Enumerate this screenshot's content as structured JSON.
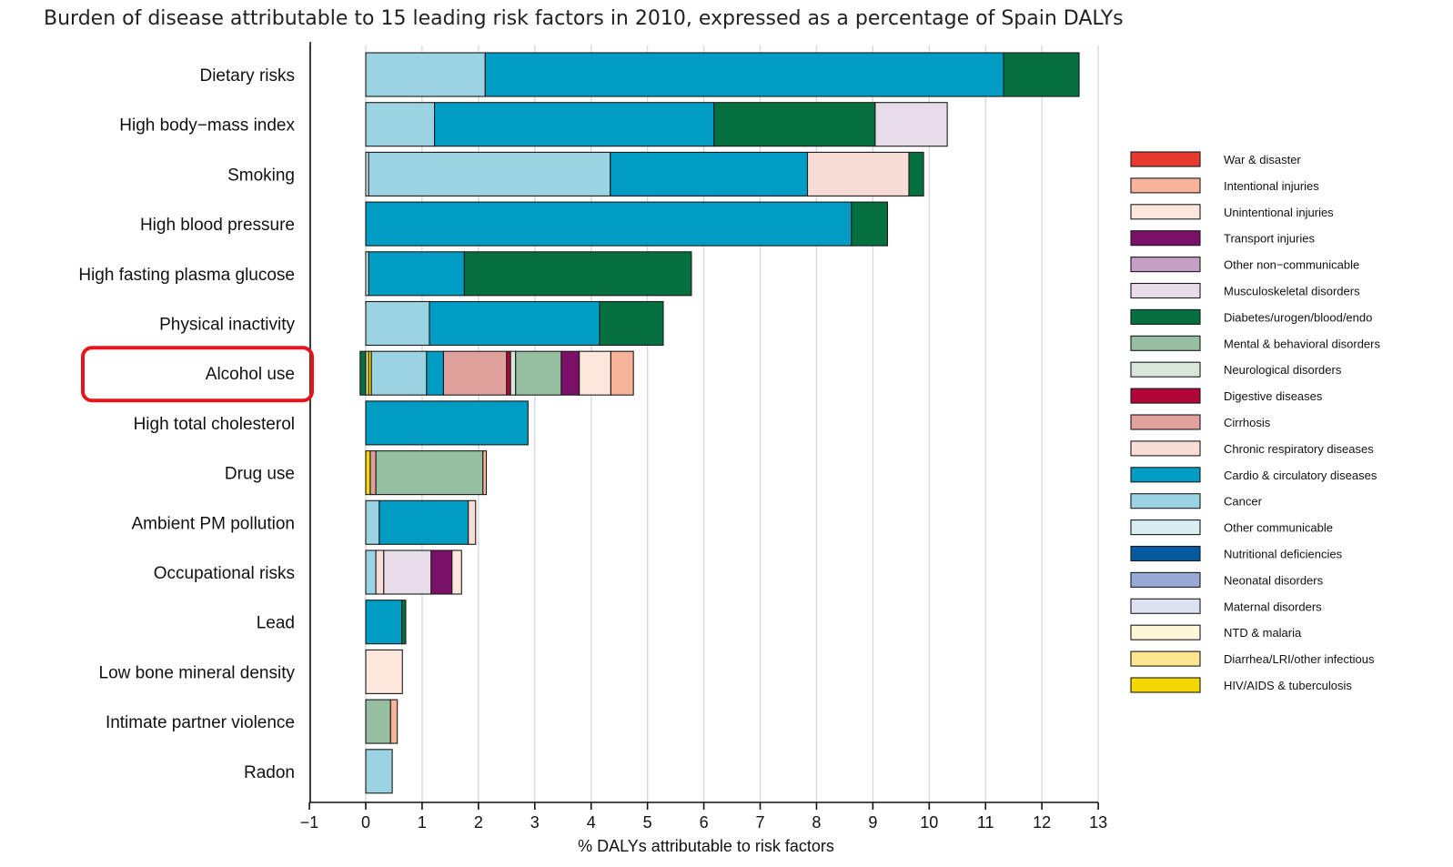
{
  "chart_data": {
    "type": "bar",
    "orientation": "horizontal",
    "stacked": true,
    "title": "Burden of disease attributable to 15 leading risk factors in 2010, expressed as a percentage of Spain DALYs",
    "xlabel": "% DALYs attributable to risk factors",
    "ylabel": "",
    "xlim": [
      -1,
      13
    ],
    "xticks": [
      "−1",
      "0",
      "1",
      "2",
      "3",
      "4",
      "5",
      "6",
      "7",
      "8",
      "9",
      "10",
      "11",
      "12",
      "13"
    ],
    "grid": true,
    "legend_position": "right",
    "highlight": "Alcohol use",
    "categories": [
      "Dietary risks",
      "High body−mass index",
      "Smoking",
      "High blood pressure",
      "High fasting plasma glucose",
      "Physical inactivity",
      "Alcohol use",
      "High total cholesterol",
      "Drug use",
      "Ambient PM pollution",
      "Occupational risks",
      "Lead",
      "Low bone mineral density",
      "Intimate partner violence",
      "Radon"
    ],
    "legend": [
      {
        "label": "War & disaster",
        "color": "#e8392e"
      },
      {
        "label": "Intentional injuries",
        "color": "#f7b49a"
      },
      {
        "label": "Unintentional injuries",
        "color": "#fde6dc"
      },
      {
        "label": "Transport injuries",
        "color": "#7a1068"
      },
      {
        "label": "Other non−communicable",
        "color": "#c59fc4"
      },
      {
        "label": "Musculoskeletal disorders",
        "color": "#e8dce9"
      },
      {
        "label": "Diabetes/urogen/blood/endo",
        "color": "#05703f"
      },
      {
        "label": "Mental & behavioral disorders",
        "color": "#96bfa2"
      },
      {
        "label": "Neurological disorders",
        "color": "#d9e6dc"
      },
      {
        "label": "Digestive diseases",
        "color": "#b1063a"
      },
      {
        "label": "Cirrhosis",
        "color": "#e0a19d"
      },
      {
        "label": "Chronic respiratory diseases",
        "color": "#f8dcd6"
      },
      {
        "label": "Cardio & circulatory diseases",
        "color": "#009cc3"
      },
      {
        "label": "Cancer",
        "color": "#9bd3e3"
      },
      {
        "label": "Other communicable",
        "color": "#d9eef3"
      },
      {
        "label": "Nutritional deficiencies",
        "color": "#055aa0"
      },
      {
        "label": "Neonatal disorders",
        "color": "#98a9d6"
      },
      {
        "label": "Maternal disorders",
        "color": "#dde2f2"
      },
      {
        "label": "NTD & malaria",
        "color": "#fff6d9"
      },
      {
        "label": "Diarrhea/LRI/other infectious",
        "color": "#fde68f"
      },
      {
        "label": "HIV/AIDS & tuberculosis",
        "color": "#f5d800"
      }
    ],
    "series": [
      {
        "risk": "Dietary risks",
        "segments": [
          {
            "cause": "Cancer",
            "value": 2.12
          },
          {
            "cause": "Cardio & circulatory diseases",
            "value": 9.2
          },
          {
            "cause": "Diabetes/urogen/blood/endo",
            "value": 1.34
          }
        ]
      },
      {
        "risk": "High body−mass index",
        "segments": [
          {
            "cause": "Cancer",
            "value": 1.22
          },
          {
            "cause": "Cardio & circulatory diseases",
            "value": 4.96
          },
          {
            "cause": "Diabetes/urogen/blood/endo",
            "value": 2.86
          },
          {
            "cause": "Musculoskeletal disorders",
            "value": 1.28
          }
        ]
      },
      {
        "risk": "Smoking",
        "segments": [
          {
            "cause": "Other communicable",
            "value": 0.05
          },
          {
            "cause": "Cancer",
            "value": 4.29
          },
          {
            "cause": "Cardio & circulatory diseases",
            "value": 3.5
          },
          {
            "cause": "Chronic respiratory diseases",
            "value": 1.8
          },
          {
            "cause": "Diabetes/urogen/blood/endo",
            "value": 0.26
          }
        ]
      },
      {
        "risk": "High blood pressure",
        "segments": [
          {
            "cause": "Cardio & circulatory diseases",
            "value": 8.62
          },
          {
            "cause": "Diabetes/urogen/blood/endo",
            "value": 0.64
          }
        ]
      },
      {
        "risk": "High fasting plasma glucose",
        "segments": [
          {
            "cause": "Other communicable",
            "value": 0.05
          },
          {
            "cause": "Cardio & circulatory diseases",
            "value": 1.7
          },
          {
            "cause": "Diabetes/urogen/blood/endo",
            "value": 4.03
          }
        ]
      },
      {
        "risk": "Physical inactivity",
        "segments": [
          {
            "cause": "Cancer",
            "value": 1.13
          },
          {
            "cause": "Cardio & circulatory diseases",
            "value": 3.02
          },
          {
            "cause": "Diabetes/urogen/blood/endo",
            "value": 1.13
          }
        ]
      },
      {
        "risk": "Alcohol use",
        "negative_segments": [
          {
            "cause": "Diabetes/urogen/blood/endo",
            "value": -0.1
          }
        ],
        "segments": [
          {
            "cause": "Diarrhea/LRI/other infectious",
            "value": 0.05
          },
          {
            "cause": "HIV/AIDS & tuberculosis",
            "value": 0.05
          },
          {
            "cause": "Cancer",
            "value": 0.98
          },
          {
            "cause": "Cardio & circulatory diseases",
            "value": 0.3
          },
          {
            "cause": "Cirrhosis",
            "value": 1.12
          },
          {
            "cause": "Digestive diseases",
            "value": 0.07
          },
          {
            "cause": "Neurological disorders",
            "value": 0.09
          },
          {
            "cause": "Mental & behavioral disorders",
            "value": 0.81
          },
          {
            "cause": "Transport injuries",
            "value": 0.32
          },
          {
            "cause": "Unintentional injuries",
            "value": 0.56
          },
          {
            "cause": "Intentional injuries",
            "value": 0.4
          }
        ]
      },
      {
        "risk": "High total cholesterol",
        "segments": [
          {
            "cause": "Cardio & circulatory diseases",
            "value": 2.88
          }
        ]
      },
      {
        "risk": "Drug use",
        "segments": [
          {
            "cause": "HIV/AIDS & tuberculosis",
            "value": 0.08
          },
          {
            "cause": "Cirrhosis",
            "value": 0.1
          },
          {
            "cause": "Mental & behavioral disorders",
            "value": 1.9
          },
          {
            "cause": "Intentional injuries",
            "value": 0.06
          }
        ]
      },
      {
        "risk": "Ambient PM pollution",
        "segments": [
          {
            "cause": "Cancer",
            "value": 0.24
          },
          {
            "cause": "Cardio & circulatory diseases",
            "value": 1.58
          },
          {
            "cause": "Chronic respiratory diseases",
            "value": 0.13
          }
        ]
      },
      {
        "risk": "Occupational risks",
        "segments": [
          {
            "cause": "Cancer",
            "value": 0.18
          },
          {
            "cause": "Chronic respiratory diseases",
            "value": 0.14
          },
          {
            "cause": "Musculoskeletal disorders",
            "value": 0.84
          },
          {
            "cause": "Transport injuries",
            "value": 0.37
          },
          {
            "cause": "Unintentional injuries",
            "value": 0.17
          }
        ]
      },
      {
        "risk": "Lead",
        "segments": [
          {
            "cause": "Cardio & circulatory diseases",
            "value": 0.64
          },
          {
            "cause": "Diabetes/urogen/blood/endo",
            "value": 0.07
          }
        ]
      },
      {
        "risk": "Low bone mineral density",
        "segments": [
          {
            "cause": "Unintentional injuries",
            "value": 0.65
          }
        ]
      },
      {
        "risk": "Intimate partner violence",
        "segments": [
          {
            "cause": "Mental & behavioral disorders",
            "value": 0.44
          },
          {
            "cause": "Intentional injuries",
            "value": 0.12
          }
        ]
      },
      {
        "risk": "Radon",
        "segments": [
          {
            "cause": "Cancer",
            "value": 0.47
          }
        ]
      }
    ]
  }
}
